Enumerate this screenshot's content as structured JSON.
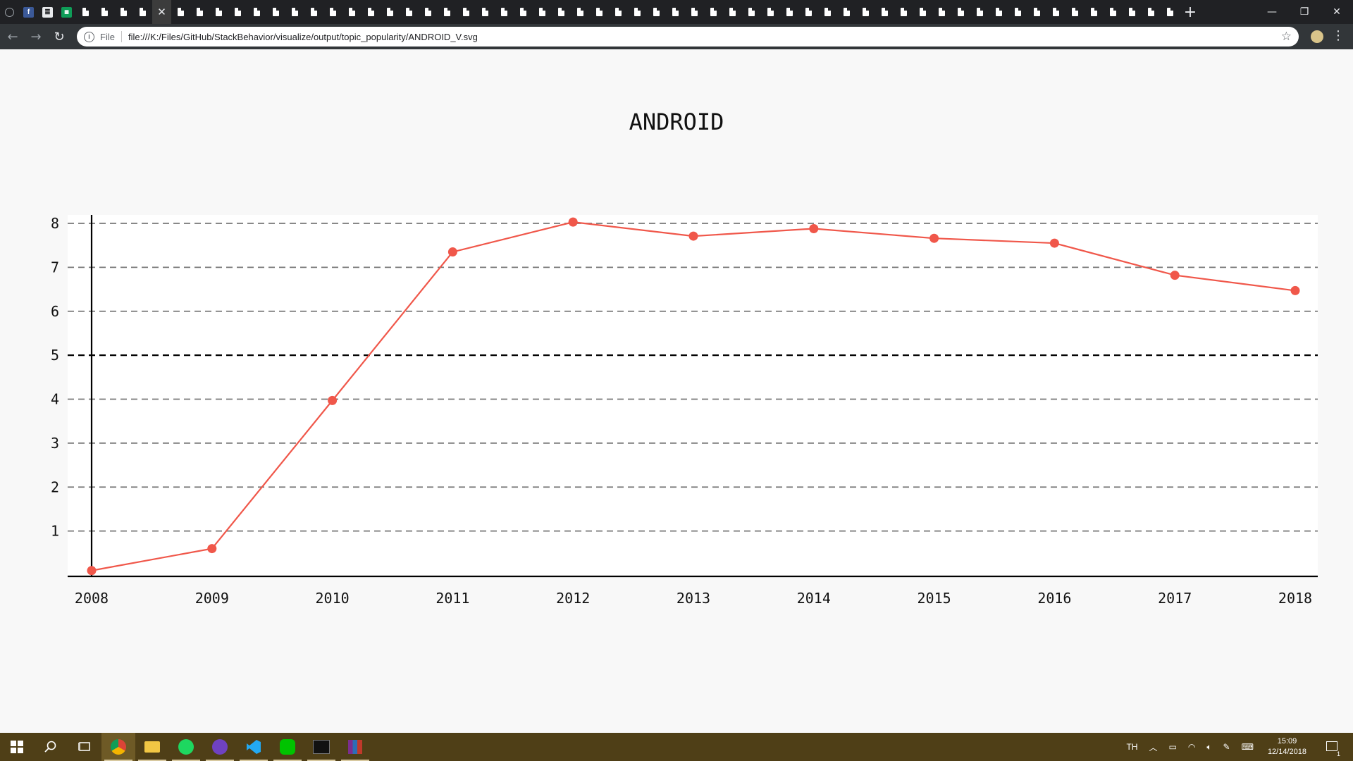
{
  "browser": {
    "tabs": {
      "count_blank": 58,
      "close_glyph": "✕",
      "new_tab_glyph": "+"
    },
    "window_controls": {
      "minimize": "—",
      "restore": "❐",
      "close": "✕"
    },
    "toolbar": {
      "back_glyph": "←",
      "forward_glyph": "→",
      "reload_glyph": "↻",
      "scheme_label": "File",
      "url": "file:///K:/Files/GitHub/StackBehavior/visualize/output/topic_popularity/ANDROID_V.svg",
      "star_glyph": "☆",
      "menu_glyph": "⋮"
    }
  },
  "chart_data": {
    "type": "line",
    "title": "ANDROID",
    "x": [
      "2008",
      "2009",
      "2010",
      "2011",
      "2012",
      "2013",
      "2014",
      "2015",
      "2016",
      "2017",
      "2018"
    ],
    "series": [
      {
        "values": [
          0.1,
          0.6,
          3.97,
          7.35,
          8.03,
          7.71,
          7.88,
          7.66,
          7.55,
          6.82,
          6.47
        ]
      }
    ],
    "yticks": [
      1,
      2,
      3,
      4,
      5,
      6,
      7,
      8
    ],
    "ylim": [
      0,
      8
    ],
    "highlight_line": 5,
    "grid": true,
    "line_color": "#f0574a",
    "grid_color": "#777777",
    "axis_color": "#000000"
  },
  "taskbar": {
    "apps": [
      "windows-start",
      "search",
      "task-view",
      "chrome",
      "file-explorer",
      "spotify",
      "github-desktop",
      "vscode",
      "line",
      "terminal",
      "winrar"
    ],
    "tray": {
      "language": "TH",
      "time": "15:09",
      "date": "12/14/2018",
      "notifications": "1"
    }
  }
}
